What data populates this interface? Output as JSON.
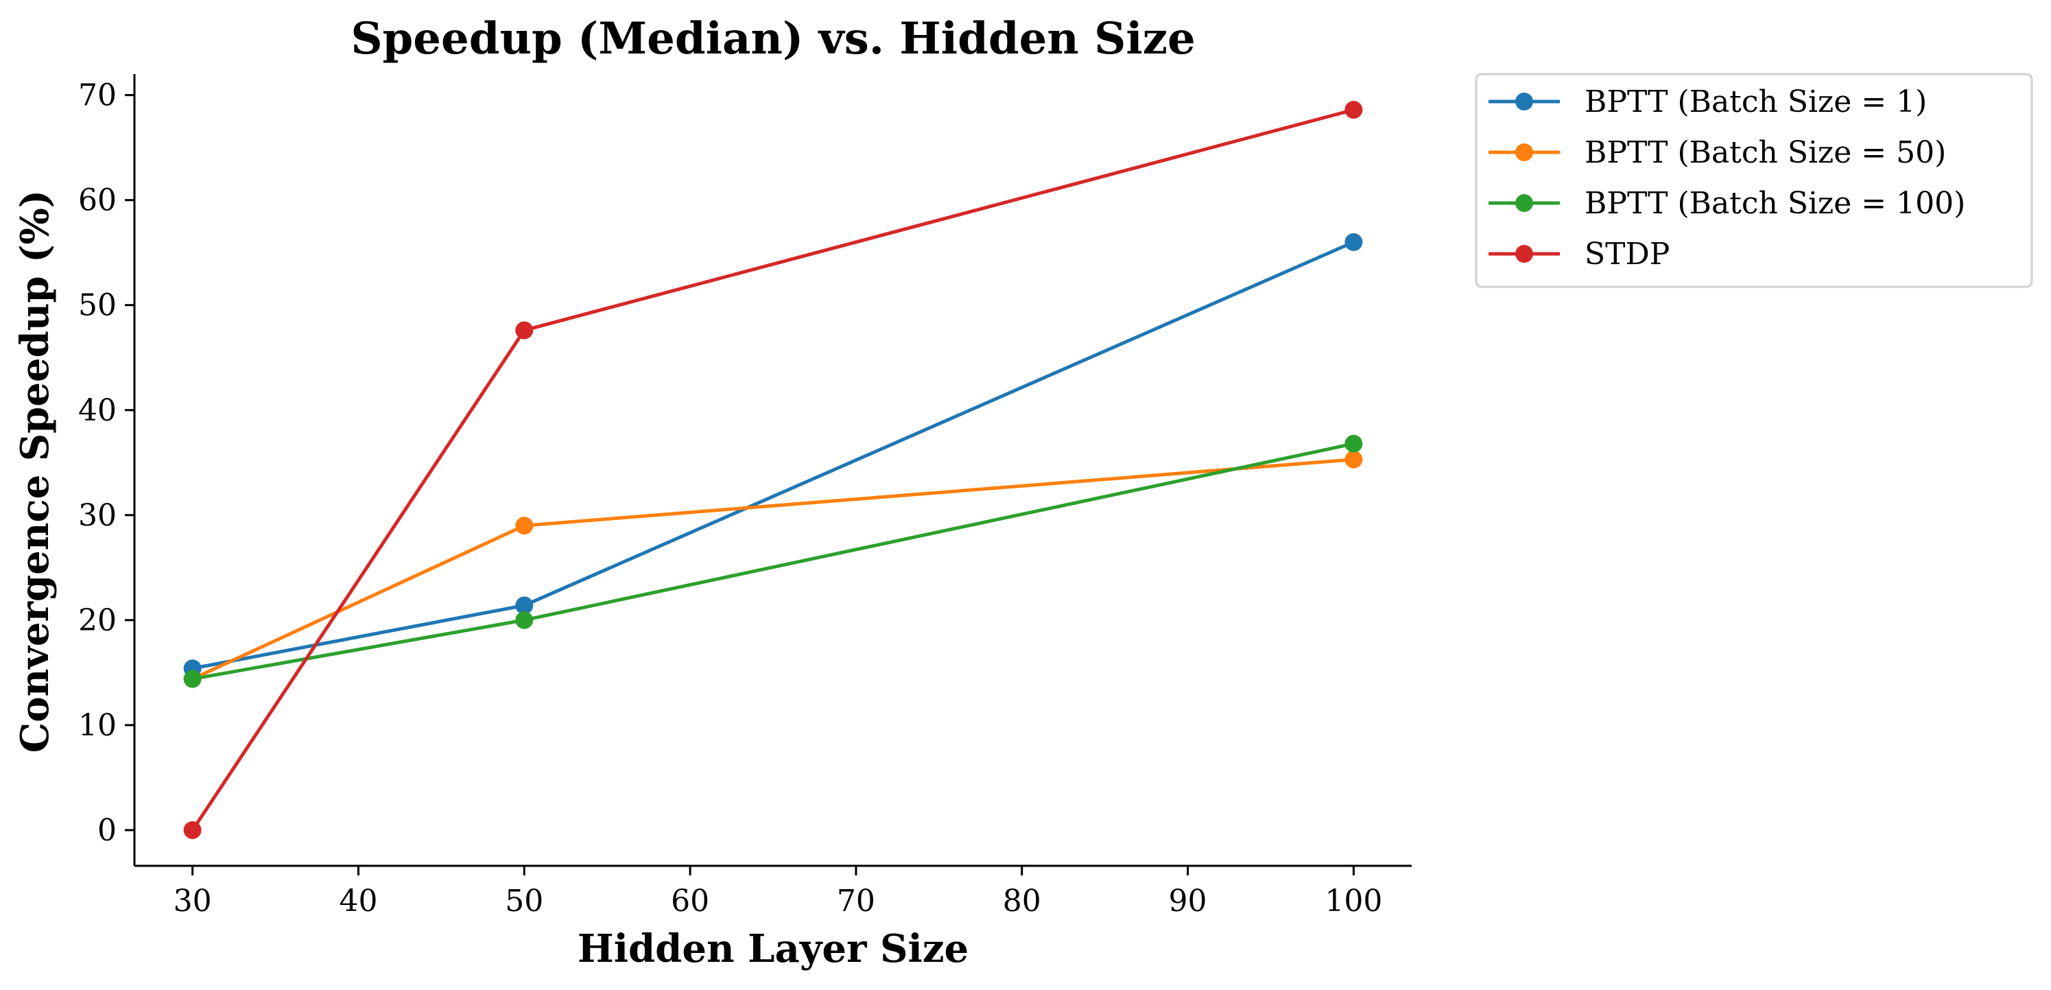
{
  "chart_data": {
    "type": "line",
    "title": "Speedup (Median) vs. Hidden Size",
    "xlabel": "Hidden Layer Size",
    "ylabel": "Convergence Speedup (%)",
    "x": [
      30,
      50,
      100
    ],
    "xlim": [
      26.5,
      103.5
    ],
    "ylim": [
      -3.4,
      72
    ],
    "xticks": [
      30,
      40,
      50,
      60,
      70,
      80,
      90,
      100
    ],
    "yticks": [
      0,
      10,
      20,
      30,
      40,
      50,
      60,
      70
    ],
    "grid": false,
    "legend_position": "outside-top-right",
    "series": [
      {
        "name": "BPTT (Batch Size = 1)",
        "color": "#1f77b4",
        "values": [
          15.4,
          21.4,
          56.0
        ]
      },
      {
        "name": "BPTT (Batch Size = 50)",
        "color": "#ff7f0e",
        "values": [
          14.4,
          29.0,
          35.3
        ]
      },
      {
        "name": "BPTT (Batch Size = 100)",
        "color": "#2ca02c",
        "values": [
          14.4,
          20.0,
          36.8
        ]
      },
      {
        "name": "STDP",
        "color": "#d62728",
        "values": [
          0.0,
          47.6,
          68.6
        ]
      }
    ]
  }
}
